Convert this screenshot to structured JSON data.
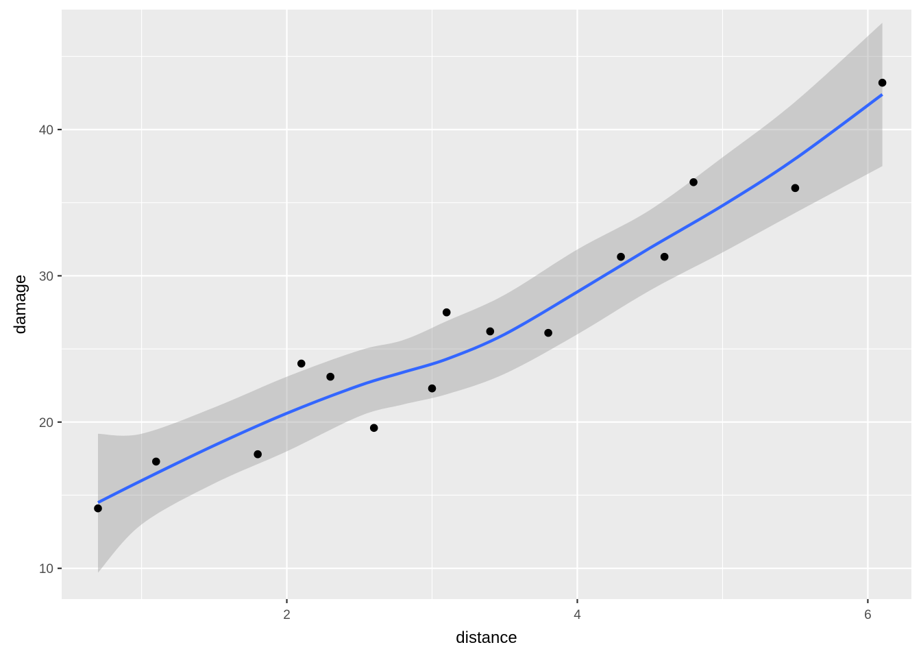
{
  "chart_data": {
    "type": "scatter",
    "title": "",
    "xlabel": "distance",
    "ylabel": "damage",
    "xlim": [
      0.45,
      6.3
    ],
    "ylim": [
      7.9,
      48.2
    ],
    "x_ticks": [
      2,
      4,
      6
    ],
    "x_tick_labels": [
      "2",
      "4",
      "6"
    ],
    "y_ticks": [
      10,
      20,
      30,
      40
    ],
    "y_tick_labels": [
      "10",
      "20",
      "30",
      "40"
    ],
    "grid": true,
    "legend": "none",
    "points": {
      "x": [
        0.7,
        1.1,
        1.8,
        2.1,
        2.3,
        2.6,
        3.0,
        3.1,
        3.4,
        3.8,
        4.3,
        4.6,
        4.8,
        5.5,
        6.1
      ],
      "y": [
        14.1,
        17.3,
        17.8,
        24.0,
        23.1,
        19.6,
        22.3,
        27.5,
        26.2,
        26.1,
        31.3,
        31.3,
        36.4,
        36.0,
        43.2
      ],
      "color": "#000000"
    },
    "smooth": {
      "method": "loess",
      "color": "#3366ff",
      "ribbon_color": "#999999",
      "x": [
        0.7,
        1.0,
        1.5,
        2.0,
        2.5,
        2.8,
        3.1,
        3.5,
        4.0,
        4.5,
        5.0,
        5.5,
        6.1
      ],
      "y": [
        14.5,
        16.0,
        18.4,
        20.6,
        22.5,
        23.4,
        24.3,
        26.0,
        28.9,
        31.9,
        34.8,
        38.0,
        42.4
      ],
      "lower": [
        9.7,
        13.0,
        15.8,
        18.0,
        20.4,
        21.2,
        21.9,
        23.3,
        26.0,
        29.0,
        31.6,
        34.3,
        37.5
      ],
      "upper": [
        19.2,
        19.2,
        21.0,
        23.1,
        24.9,
        25.6,
        26.9,
        28.7,
        31.8,
        34.5,
        38.1,
        41.9,
        47.3
      ]
    },
    "colors": {
      "panel_background": "#ebebeb",
      "grid_major": "#ffffff",
      "tick_text": "#4d4d4d"
    }
  }
}
